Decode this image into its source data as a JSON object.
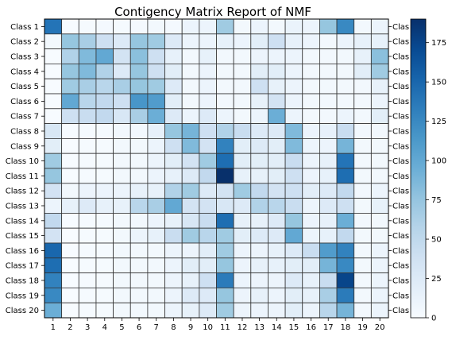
{
  "chart_data": {
    "type": "heatmap",
    "title": "Contigency Matrix Report of NMF",
    "xlabel": "",
    "ylabel": "",
    "x_tick_labels": [
      "1",
      "2",
      "3",
      "4",
      "5",
      "6",
      "7",
      "8",
      "9",
      "10",
      "11",
      "12",
      "13",
      "14",
      "15",
      "16",
      "17",
      "18",
      "19",
      "20"
    ],
    "y_tick_labels": [
      "Class 1",
      "Class 2",
      "Class 3",
      "Class 4",
      "Class 5",
      "Class 6",
      "Class 7",
      "Class 8",
      "Class 9",
      "Class 10",
      "Class 11",
      "Class 12",
      "Class 13",
      "Class 14",
      "Class 15",
      "Class 16",
      "Class 17",
      "Class 18",
      "Class 19",
      "Class 20"
    ],
    "right_tick_labels": [
      "Clas",
      "Clas",
      "Clas",
      "Clas",
      "Clas",
      "Clas",
      "Clas",
      "Clas",
      "Clas",
      "Clas",
      "Clas",
      "Clas",
      "Clas",
      "Clas",
      "Clas",
      "Clas",
      "Clas",
      "Clas",
      "Clas",
      "Clas"
    ],
    "colormap": "Blues",
    "colorbar": {
      "vmin": 0,
      "vmax": 190,
      "ticks": [
        0,
        25,
        50,
        75,
        100,
        125,
        150,
        175
      ]
    },
    "grid": true,
    "values": [
      [
        140,
        0,
        2,
        3,
        2,
        3,
        5,
        3,
        10,
        10,
        70,
        5,
        10,
        5,
        12,
        10,
        75,
        125,
        5,
        10
      ],
      [
        5,
        75,
        65,
        40,
        25,
        75,
        70,
        25,
        10,
        10,
        15,
        10,
        20,
        40,
        15,
        10,
        5,
        10,
        15,
        15
      ],
      [
        0,
        60,
        85,
        100,
        35,
        80,
        40,
        15,
        5,
        15,
        5,
        5,
        10,
        10,
        10,
        5,
        5,
        5,
        15,
        80
      ],
      [
        0,
        75,
        85,
        60,
        25,
        75,
        40,
        20,
        5,
        10,
        5,
        5,
        20,
        20,
        10,
        5,
        5,
        5,
        20,
        70
      ],
      [
        0,
        70,
        65,
        55,
        65,
        75,
        70,
        25,
        5,
        10,
        5,
        5,
        40,
        15,
        10,
        5,
        5,
        5,
        5,
        15
      ],
      [
        0,
        100,
        55,
        50,
        40,
        115,
        110,
        20,
        5,
        10,
        5,
        5,
        15,
        35,
        10,
        5,
        5,
        5,
        5,
        10
      ],
      [
        0,
        40,
        45,
        50,
        30,
        65,
        95,
        25,
        10,
        25,
        10,
        5,
        10,
        95,
        10,
        5,
        5,
        10,
        5,
        20
      ],
      [
        30,
        0,
        2,
        2,
        5,
        5,
        15,
        75,
        90,
        40,
        60,
        45,
        25,
        25,
        85,
        10,
        15,
        45,
        5,
        5
      ],
      [
        20,
        0,
        2,
        2,
        5,
        5,
        10,
        40,
        85,
        35,
        130,
        20,
        25,
        20,
        85,
        10,
        10,
        90,
        5,
        5
      ],
      [
        70,
        0,
        2,
        2,
        5,
        5,
        10,
        20,
        35,
        70,
        145,
        20,
        20,
        20,
        45,
        10,
        15,
        140,
        5,
        5
      ],
      [
        75,
        0,
        2,
        2,
        5,
        5,
        10,
        15,
        25,
        50,
        190,
        15,
        15,
        20,
        40,
        10,
        15,
        145,
        5,
        5
      ],
      [
        35,
        5,
        10,
        10,
        10,
        15,
        15,
        60,
        70,
        25,
        35,
        70,
        50,
        35,
        40,
        20,
        25,
        50,
        5,
        10
      ],
      [
        10,
        15,
        25,
        15,
        15,
        55,
        65,
        100,
        35,
        35,
        30,
        25,
        60,
        55,
        45,
        10,
        25,
        40,
        5,
        15
      ],
      [
        50,
        0,
        2,
        2,
        5,
        5,
        10,
        15,
        30,
        45,
        145,
        15,
        15,
        25,
        75,
        10,
        15,
        95,
        5,
        5
      ],
      [
        35,
        0,
        2,
        2,
        5,
        10,
        15,
        45,
        70,
        55,
        70,
        20,
        25,
        25,
        100,
        10,
        15,
        50,
        5,
        5
      ],
      [
        150,
        0,
        2,
        2,
        5,
        5,
        5,
        10,
        10,
        20,
        70,
        10,
        10,
        15,
        25,
        45,
        110,
        130,
        5,
        10
      ],
      [
        145,
        0,
        2,
        2,
        5,
        5,
        5,
        10,
        20,
        20,
        75,
        10,
        15,
        15,
        20,
        20,
        90,
        125,
        5,
        10
      ],
      [
        130,
        0,
        2,
        2,
        5,
        5,
        5,
        10,
        15,
        40,
        135,
        10,
        10,
        10,
        25,
        15,
        45,
        175,
        5,
        10
      ],
      [
        125,
        0,
        2,
        2,
        5,
        5,
        5,
        10,
        25,
        25,
        75,
        10,
        15,
        10,
        20,
        15,
        65,
        135,
        5,
        10
      ],
      [
        95,
        0,
        2,
        2,
        5,
        5,
        5,
        10,
        15,
        25,
        70,
        10,
        10,
        10,
        20,
        10,
        55,
        90,
        5,
        10
      ]
    ]
  }
}
